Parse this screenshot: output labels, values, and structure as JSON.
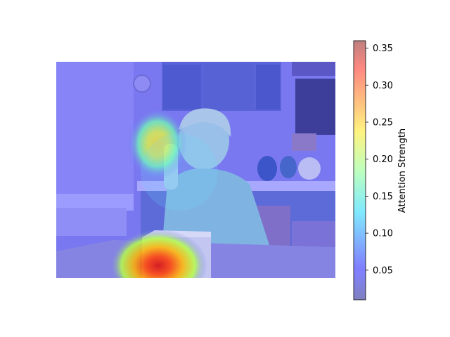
{
  "chart_data": {
    "type": "heatmap",
    "colormap": "jet",
    "overlay_alpha": 0.5,
    "colorbar": {
      "label": "Attention Strength",
      "range": [
        0.01,
        0.36
      ],
      "ticks": [
        0.05,
        0.1,
        0.15,
        0.2,
        0.25,
        0.3,
        0.35
      ],
      "tick_labels": [
        "0.05",
        "0.10",
        "0.15",
        "0.20",
        "0.25",
        "0.30",
        "0.35"
      ]
    },
    "background_image": "photo: woman with short blond hair holding a cigarette, seated at a table in a kitchen",
    "hotspots": [
      {
        "name": "box-on-table",
        "cx": 0.38,
        "cy": 0.95,
        "value": 0.36
      },
      {
        "name": "hand-with-cigarette",
        "cx": 0.36,
        "cy": 0.38,
        "value": 0.24
      }
    ]
  }
}
